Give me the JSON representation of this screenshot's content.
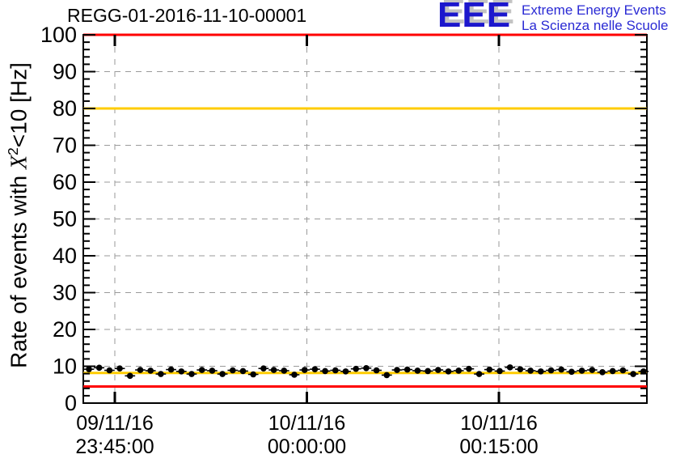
{
  "header": {
    "title": "REGG-01-2016-11-10-00001",
    "logo": {
      "acronym": "EEE",
      "line1": "Extreme Energy Events",
      "line2": "La Scienza nelle Scuole",
      "blue": "#1c17cd",
      "shadow_gray": "#c3c3c3"
    }
  },
  "chart_data": {
    "type": "scatter",
    "title": "REGG-01-2016-11-10-00001",
    "ylabel_parts": {
      "prefix": "Rate of events with ",
      "variable": "X",
      "superscript": "2",
      "suffix": "<10 [Hz]"
    },
    "ylim": [
      0,
      100
    ],
    "y_major_ticks": [
      0,
      10,
      20,
      30,
      40,
      50,
      60,
      70,
      80,
      90,
      100
    ],
    "y_minor_step": 2,
    "x_ticks": [
      {
        "date": "09/11/16",
        "time": "23:45:00"
      },
      {
        "date": "10/11/16",
        "time": "00:00:00"
      },
      {
        "date": "10/11/16",
        "time": "00:15:00"
      }
    ],
    "grid": "dashed gray lines at every major x and y tick",
    "legend": "none",
    "threshold_lines": [
      {
        "name": "limit-high",
        "value": 100,
        "color": "#ff0000"
      },
      {
        "name": "warning-high",
        "value": 80,
        "color": "#ffcc00"
      },
      {
        "name": "warning-low",
        "value": 8.2,
        "color": "#ffcc00"
      },
      {
        "name": "limit-low",
        "value": 4.5,
        "color": "#ff0000"
      }
    ],
    "series": [
      {
        "name": "event-rate",
        "marker": "filled-circle",
        "color": "#000000",
        "y_err": 0.35,
        "values": [
          9.2,
          9.6,
          8.9,
          9.4,
          7.4,
          9.0,
          8.8,
          7.9,
          9.1,
          8.6,
          7.9,
          9.0,
          8.8,
          7.9,
          8.9,
          8.7,
          7.8,
          9.4,
          9.0,
          8.8,
          7.7,
          9.0,
          9.2,
          8.7,
          8.9,
          8.6,
          9.3,
          9.5,
          8.9,
          7.6,
          9.0,
          9.1,
          8.8,
          8.7,
          9.0,
          8.6,
          8.8,
          9.3,
          7.9,
          9.1,
          8.7,
          9.7,
          9.2,
          8.8,
          8.6,
          8.9,
          9.1,
          8.5,
          8.8,
          9.0,
          8.4,
          8.7,
          8.9,
          7.9,
          8.6
        ]
      }
    ]
  },
  "colors": {
    "grid_gray": "#9a9a9a",
    "axis_black": "#000000",
    "marker_black": "#000000"
  }
}
